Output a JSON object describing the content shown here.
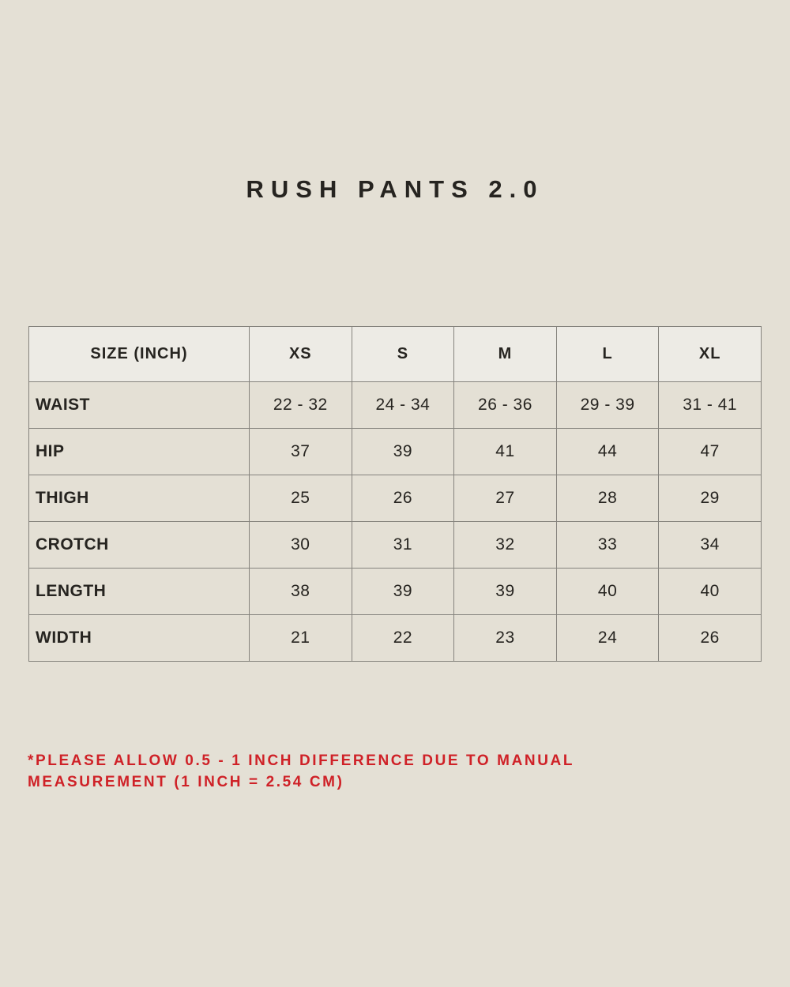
{
  "title": "RUSH PANTS 2.0",
  "disclaimer": "*PLEASE ALLOW 0.5 - 1 INCH DIFFERENCE DUE TO MANUAL MEASUREMENT (1 INCH = 2.54 CM)",
  "colors": {
    "background": "#e4e0d5",
    "header_bg": "#edebe5",
    "row_bg": "#e4e0d5",
    "border": "#85837d",
    "text": "#262420",
    "accent_red": "#cf2127"
  },
  "chart_data": {
    "type": "table",
    "title": "RUSH PANTS 2.0",
    "columns": [
      "SIZE (INCH)",
      "XS",
      "S",
      "M",
      "L",
      "XL"
    ],
    "rows": [
      {
        "label": "WAIST",
        "values": [
          "22 - 32",
          "24 - 34",
          "26 - 36",
          "29 - 39",
          "31 - 41"
        ]
      },
      {
        "label": "HIP",
        "values": [
          "37",
          "39",
          "41",
          "44",
          "47"
        ]
      },
      {
        "label": "THIGH",
        "values": [
          "25",
          "26",
          "27",
          "28",
          "29"
        ]
      },
      {
        "label": "CROTCH",
        "values": [
          "30",
          "31",
          "32",
          "33",
          "34"
        ]
      },
      {
        "label": "LENGTH",
        "values": [
          "38",
          "39",
          "39",
          "40",
          "40"
        ]
      },
      {
        "label": "WIDTH",
        "values": [
          "21",
          "22",
          "23",
          "24",
          "26"
        ]
      }
    ]
  }
}
